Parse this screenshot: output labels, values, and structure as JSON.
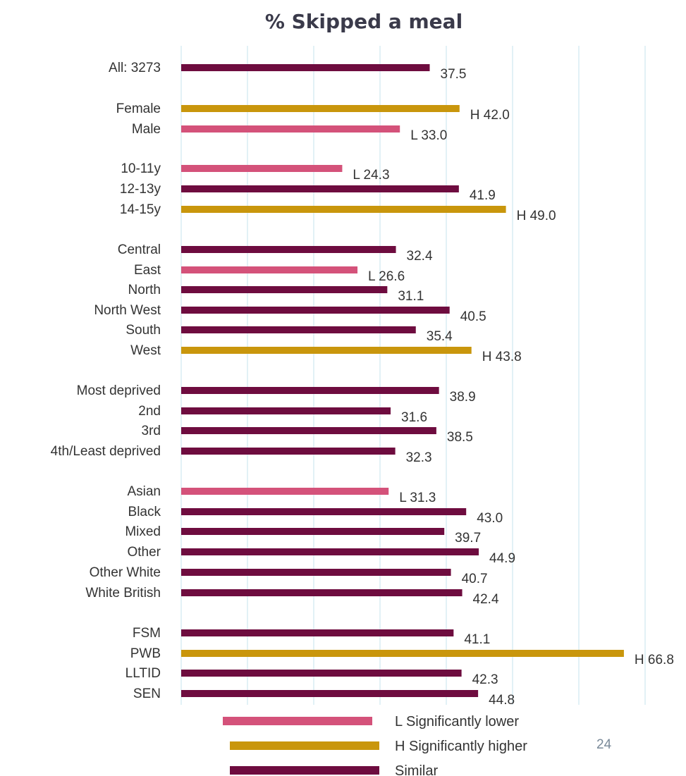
{
  "page_number": "24",
  "chart_data": {
    "type": "bar",
    "orientation": "horizontal",
    "title": "% Skipped a meal",
    "xlim": [
      0,
      70
    ],
    "grid": true,
    "colors": {
      "L": "#d4527a",
      "H": "#c9960c",
      "S": "#6e0c3f"
    },
    "categories": [
      "All: 3273",
      "Female",
      "Male",
      "10-11y",
      "12-13y",
      "14-15y",
      "Central",
      "East",
      "North",
      "North West",
      "South",
      "West",
      "Most deprived",
      "2nd",
      "3rd",
      "4th/Least deprived",
      "Asian",
      "Black",
      "Mixed",
      "Other",
      "Other White",
      "White British",
      "FSM",
      "PWB",
      "LLTID",
      "SEN"
    ],
    "values": [
      37.5,
      42.0,
      33.0,
      24.3,
      41.9,
      49.0,
      32.4,
      26.6,
      31.1,
      40.5,
      35.4,
      43.8,
      38.9,
      31.6,
      38.5,
      32.3,
      31.3,
      43.0,
      39.7,
      44.9,
      40.7,
      42.4,
      41.1,
      66.8,
      42.3,
      44.8
    ],
    "significance": [
      "S",
      "H",
      "L",
      "L",
      "S",
      "H",
      "S",
      "L",
      "S",
      "S",
      "S",
      "H",
      "S",
      "S",
      "S",
      "S",
      "L",
      "S",
      "S",
      "S",
      "S",
      "S",
      "S",
      "H",
      "S",
      "S"
    ],
    "data_labels": [
      "37.5",
      "H 42.0",
      "L 33.0",
      "L 24.3",
      "41.9",
      "H 49.0",
      "32.4",
      "L 26.6",
      "31.1",
      "40.5",
      "35.4",
      "H 43.8",
      "38.9",
      "31.6",
      "38.5",
      "32.3",
      "L 31.3",
      "43.0",
      "39.7",
      "44.9",
      "40.7",
      "42.4",
      "41.1",
      "H 66.8",
      "42.3",
      "44.8"
    ],
    "legend": {
      "position": "bottom",
      "items": [
        {
          "key": "L",
          "label": "L Significantly lower"
        },
        {
          "key": "H",
          "label": "H Significantly higher"
        },
        {
          "key": "S",
          "label": "Similar"
        }
      ]
    }
  }
}
